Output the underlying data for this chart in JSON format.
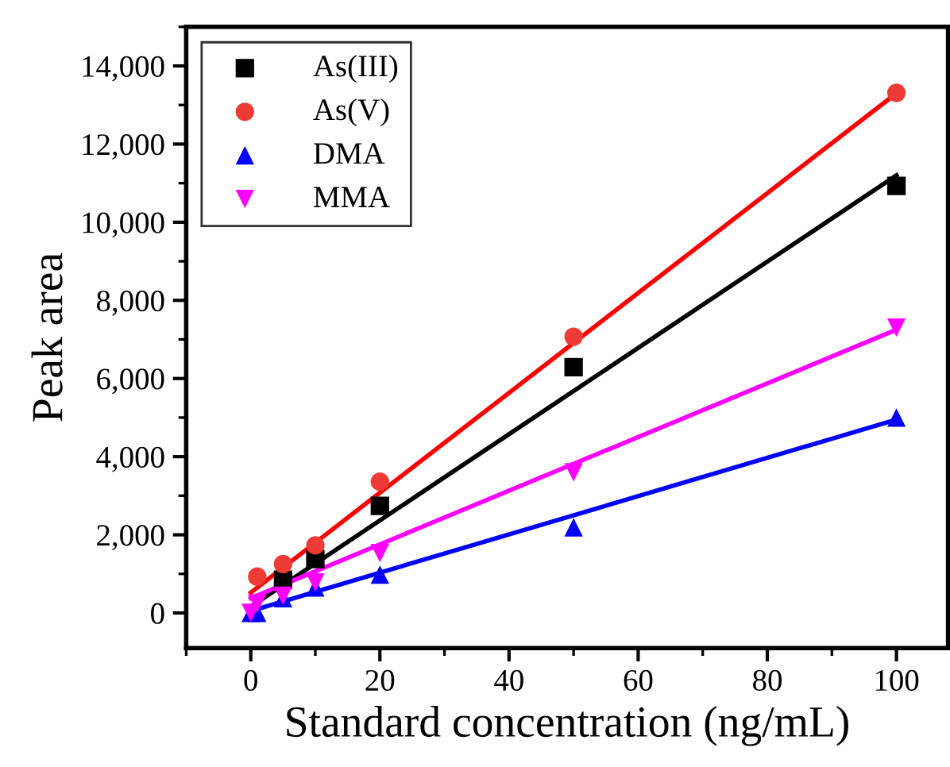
{
  "chart_data": {
    "type": "scatter",
    "xlabel": "Standard concentration (ng/mL)",
    "ylabel": "Peak area",
    "xlim": [
      -10,
      108
    ],
    "xticks": [
      0,
      20,
      40,
      60,
      80,
      100
    ],
    "ylim": [
      -900,
      15000
    ],
    "yticks": [
      {
        "value": 0,
        "label": "0"
      },
      {
        "value": 2000,
        "label": "2,000"
      },
      {
        "value": 4000,
        "label": "4,000"
      },
      {
        "value": 6000,
        "label": "6,000"
      },
      {
        "value": 8000,
        "label": "8,000"
      },
      {
        "value": 10000,
        "label": "10,000"
      },
      {
        "value": 12000,
        "label": "12,000"
      },
      {
        "value": 14000,
        "label": "14,000"
      }
    ],
    "legend": "top left",
    "grid": false,
    "series": [
      {
        "name": "As(III)",
        "color": "#000000",
        "marker": "square",
        "x": [
          5,
          10,
          20,
          50,
          100
        ],
        "values": [
          850,
          1380,
          2740,
          6290,
          10930
        ]
      },
      {
        "name": "As(V)",
        "color": "#ef3b36",
        "marker": "circle",
        "x": [
          1,
          5,
          10,
          20,
          50,
          100
        ],
        "values": [
          930,
          1250,
          1730,
          3360,
          7070,
          13310
        ]
      },
      {
        "name": "DMA",
        "color": "#0000ff",
        "marker": "triangle",
        "x": [
          0,
          1,
          5,
          10,
          20,
          50,
          100
        ],
        "values": [
          0,
          0,
          380,
          650,
          980,
          2190,
          5000
        ]
      },
      {
        "name": "MMA",
        "color": "#ff00ff",
        "marker": "triangle_down",
        "x": [
          0,
          1,
          5,
          10,
          20,
          50,
          100
        ],
        "values": [
          0,
          240,
          440,
          780,
          1530,
          3600,
          7300
        ]
      },
      {
        "type": "line",
        "color": "#000000",
        "x": [
          0,
          100
        ],
        "values": [
          160,
          11200
        ]
      },
      {
        "type": "line",
        "color": "#ff0000",
        "x": [
          0,
          100
        ],
        "values": [
          520,
          13300
        ]
      },
      {
        "type": "line",
        "color": "#0000ff",
        "x": [
          0,
          100
        ],
        "values": [
          50,
          4950
        ]
      },
      {
        "type": "line",
        "color": "#ff00ff",
        "x": [
          0,
          100
        ],
        "values": [
          380,
          7250
        ]
      }
    ]
  }
}
